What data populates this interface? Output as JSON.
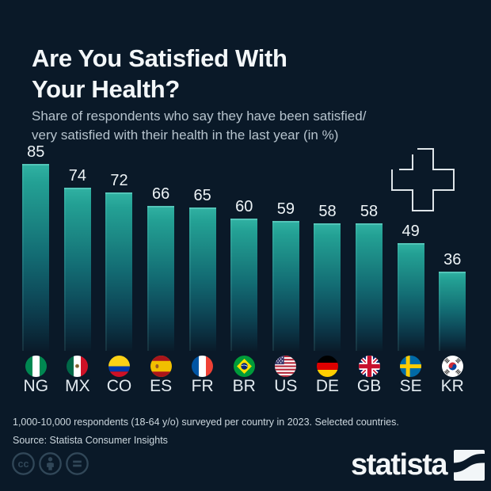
{
  "chart_data": {
    "type": "bar",
    "title": "Are You Satisfied With Your Health?",
    "subtitle": "Share of respondents who say they have been satisfied/ very satisfied with their health in the last year (in %)",
    "categories": [
      "NG",
      "MX",
      "CO",
      "ES",
      "FR",
      "BR",
      "US",
      "DE",
      "GB",
      "SE",
      "KR"
    ],
    "values": [
      85,
      74,
      72,
      66,
      65,
      60,
      59,
      58,
      58,
      49,
      36
    ],
    "unit": "%",
    "ylim": [
      0,
      100
    ],
    "grid": false,
    "legend": "none",
    "bar_color_top": "#2fb2a3",
    "bar_color_bottom": "#0a2231",
    "value_labels": "above bars",
    "x_axis": "country flags with ISO codes"
  },
  "header": {
    "title_line1": "Are You Satisfied With",
    "title_line2": "Your Health?",
    "subtitle_line1": "Share of respondents who say they have been satisfied/",
    "subtitle_line2": "very satisfied with their health in the last year (in %)"
  },
  "footer": {
    "note": "1,000-10,000 respondents (18-64 y/o) surveyed per country in 2023. Selected countries.",
    "source": "Source: Statista Consumer Insights",
    "license_icons": [
      "cc",
      "by",
      "nd"
    ],
    "brand": "statista"
  },
  "decor": {
    "health_cross_icon": "medical-cross-outline",
    "accent_color": "#2fb2a3",
    "background_color": "#0a1928"
  }
}
